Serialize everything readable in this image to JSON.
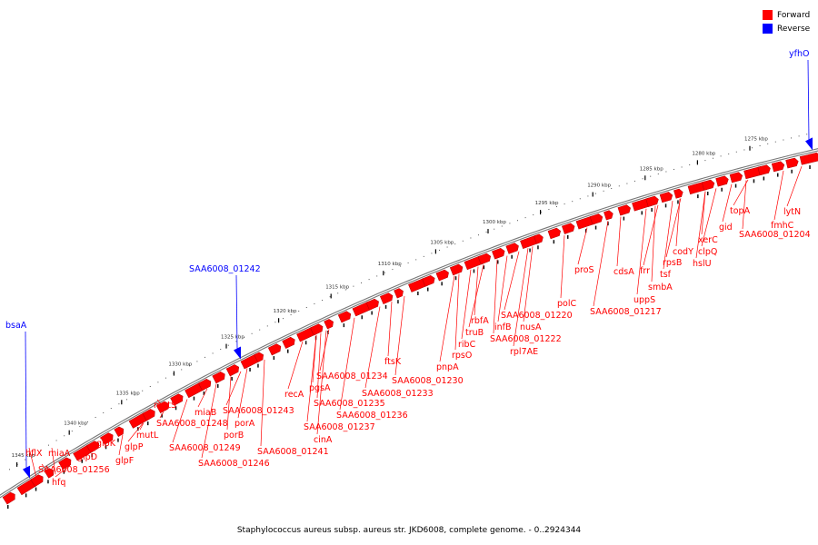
{
  "legend": [
    {
      "label": "Forward",
      "color": "#ff0000"
    },
    {
      "label": "Reverse",
      "color": "#0000ff"
    }
  ],
  "caption": "Staphylococcus aureus subsp. aureus str. JKD6008, complete genome. - 0..2924344",
  "colors": {
    "forward": "#ff0000",
    "reverse": "#0000ff",
    "backbone": "#777777"
  },
  "kbp_labels": [
    "1275 kbp",
    "1280 kbp",
    "1285 kbp",
    "1290 kbp",
    "1295 kbp",
    "1300 kbp",
    "1305 kbp",
    "1310 kbp",
    "1315 kbp",
    "1320 kbp",
    "1325 kbp",
    "1330 kbp",
    "1335 kbp",
    "1340 kbp",
    "1345 kbp"
  ],
  "reverse_genes": [
    "yfhO",
    "SAA6008_01242",
    "bsaA"
  ],
  "forward_genes": [
    "lytN",
    "fmhC",
    "SAA6008_01204",
    "topA",
    "gid",
    "xerC",
    "clpQ",
    "hslU",
    "codY",
    "rpsB",
    "tsf",
    "smbA",
    "frr",
    "uppS",
    "cdsA",
    "SAA6008_01217",
    "proS",
    "polC",
    "SAA6008_01220",
    "nusA",
    "SAA6008_01222",
    "rpl7AE",
    "infB",
    "rbfA",
    "truB",
    "ribC",
    "rpsO",
    "pnpA",
    "SAA6008_01230",
    "ftsK",
    "SAA6008_01233",
    "SAA6008_01234",
    "SAA6008_01235",
    "SAA6008_01236",
    "SAA6008_01237",
    "pgsA",
    "recA",
    "cinA",
    "SAA6008_01241",
    "SAA6008_01243",
    "porA",
    "porB",
    "SAA6008_01246",
    "miaB",
    "SAA6008_01248",
    "SAA6008_01249",
    "mutS",
    "mutL",
    "glpP",
    "glpK",
    "glpF",
    "glpD",
    "SAA6008_01256",
    "miaA",
    "hfq",
    "hflX"
  ]
}
